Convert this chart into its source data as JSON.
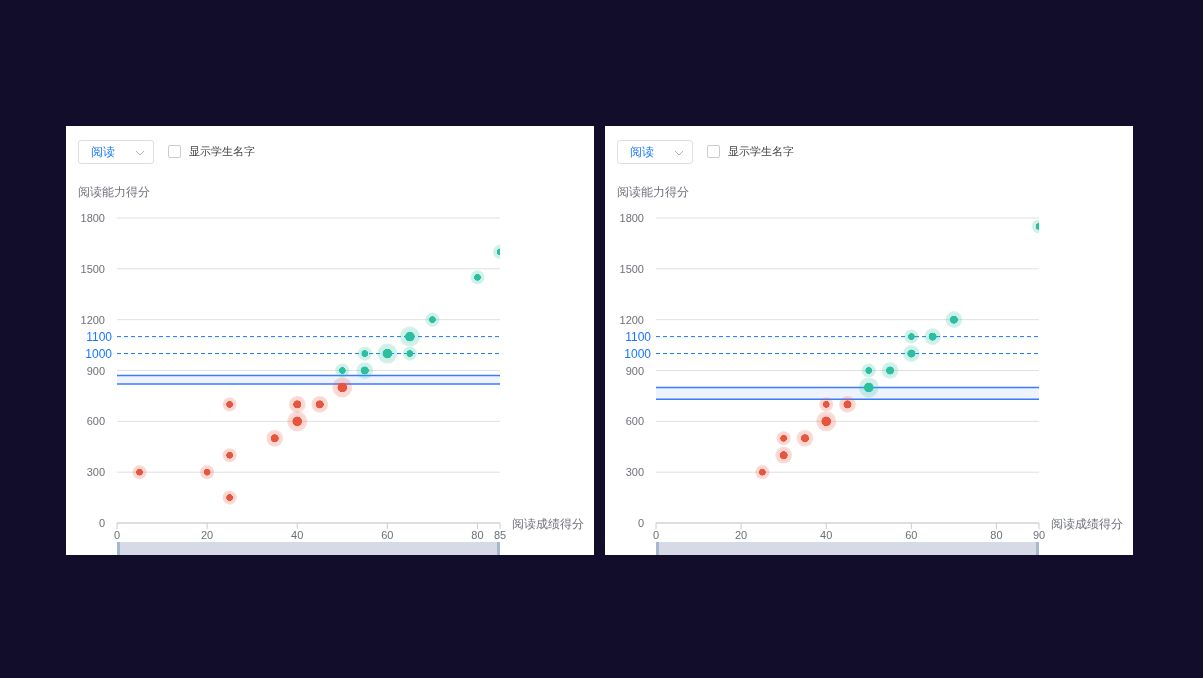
{
  "chart_data": [
    {
      "type": "scatter",
      "annotations": [
        "阅读",
        "显示学生名字"
      ],
      "xlabel": "阅读成绩得分",
      "ylabel": "阅读能力得分",
      "xlim": [
        0,
        85
      ],
      "xticks": [
        0,
        20,
        40,
        60,
        80,
        85
      ],
      "ylim": [
        0,
        1800
      ],
      "yticks": [
        0,
        300,
        600,
        900,
        1200,
        1500,
        1800
      ],
      "grid": "y",
      "legend": false,
      "marker": "circle",
      "series": [
        {
          "color": "#e8553e",
          "x": [
            5,
            20,
            25,
            25,
            25,
            35,
            40,
            40,
            45,
            50
          ],
          "values": [
            300,
            300,
            150,
            400,
            700,
            500,
            600,
            700,
            700,
            800
          ],
          "sizes": [
            0.5,
            0.5,
            0.5,
            0.5,
            0.5,
            0.7,
            1,
            0.7,
            0.7,
            1
          ]
        },
        {
          "color": "#2bbfa0",
          "x": [
            50,
            55,
            55,
            60,
            65,
            65,
            70,
            80,
            85
          ],
          "values": [
            900,
            900,
            1000,
            1000,
            1000,
            1100,
            1200,
            1450,
            1600
          ],
          "sizes": [
            0.5,
            0.7,
            0.5,
            1,
            0.5,
            1,
            0.5,
            0.5,
            0.5
          ]
        }
      ],
      "ref_lines": [
        {
          "axis": "y",
          "value": 1000,
          "label": "1000",
          "color": "#1677ff",
          "line_style": "dashed"
        },
        {
          "axis": "y",
          "value": 1100,
          "label": "1100",
          "color": "#1677ff",
          "line_style": "dashed"
        },
        {
          "axis": "y",
          "value": 820,
          "color": "#3a7bff",
          "line_style": "solid"
        },
        {
          "axis": "y",
          "value": 870,
          "color": "#3a7bff",
          "line_style": "solid"
        }
      ],
      "bands": [
        {
          "axis": "y",
          "from": 820,
          "to": 870,
          "color": "#dce8ff"
        }
      ]
    },
    {
      "type": "scatter",
      "annotations": [
        "阅读",
        "显示学生名字"
      ],
      "xlabel": "阅读成绩得分",
      "ylabel": "阅读能力得分",
      "xlim": [
        0,
        90
      ],
      "xticks": [
        0,
        20,
        40,
        60,
        80,
        90
      ],
      "ylim": [
        0,
        1800
      ],
      "yticks": [
        0,
        300,
        600,
        900,
        1200,
        1500,
        1800
      ],
      "grid": "y",
      "legend": false,
      "marker": "circle",
      "series": [
        {
          "color": "#e8553e",
          "x": [
            25,
            30,
            30,
            35,
            40,
            40,
            45
          ],
          "values": [
            300,
            400,
            500,
            500,
            600,
            700,
            700
          ],
          "sizes": [
            0.5,
            0.7,
            0.5,
            0.7,
            1,
            0.5,
            0.7
          ]
        },
        {
          "color": "#2bbfa0",
          "x": [
            50,
            50,
            55,
            60,
            60,
            65,
            70,
            90
          ],
          "values": [
            800,
            900,
            900,
            1000,
            1100,
            1100,
            1200,
            1750
          ],
          "sizes": [
            1,
            0.5,
            0.7,
            0.7,
            0.5,
            0.7,
            0.7,
            0.5
          ]
        }
      ],
      "ref_lines": [
        {
          "axis": "y",
          "value": 1000,
          "label": "1000",
          "color": "#1677ff",
          "line_style": "dashed"
        },
        {
          "axis": "y",
          "value": 1100,
          "label": "1100",
          "color": "#1677ff",
          "line_style": "dashed"
        },
        {
          "axis": "y",
          "value": 730,
          "color": "#3a7bff",
          "line_style": "solid"
        },
        {
          "axis": "y",
          "value": 800,
          "color": "#3a7bff",
          "line_style": "solid"
        }
      ],
      "bands": [
        {
          "axis": "y",
          "from": 730,
          "to": 800,
          "color": "#dce8ff"
        }
      ]
    }
  ]
}
